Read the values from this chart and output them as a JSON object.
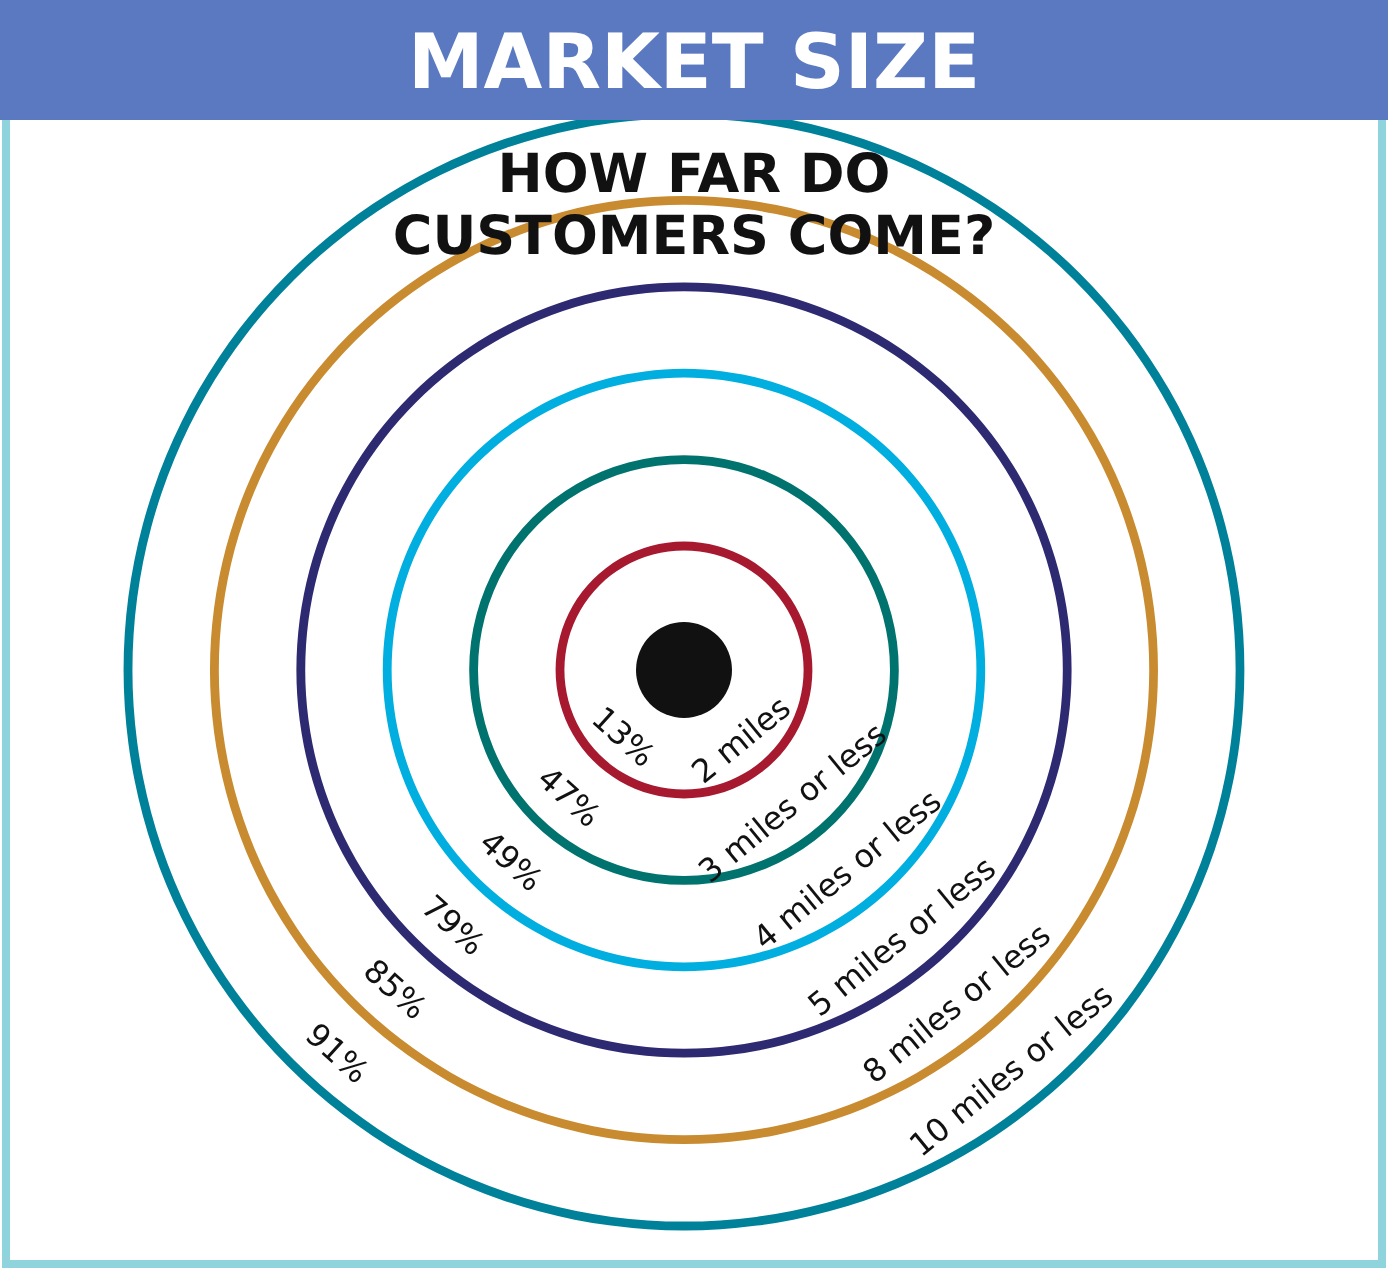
{
  "chart_data": {
    "type": "other",
    "title": "MARKET SIZE",
    "subtitle": "HOW FAR DO\nCUSTOMERS COME?",
    "categories": [
      "2 miles",
      "3 miles or less",
      "4 miles or less",
      "5 miles or less",
      "8 miles or less",
      "10 miles or less"
    ],
    "values": [
      13,
      47,
      49,
      79,
      85,
      91
    ],
    "value_labels": [
      "13%",
      "47%",
      "49%",
      "79%",
      "85%",
      "91%"
    ],
    "colors": [
      "#a6192e",
      "#00736e",
      "#00aee0",
      "#2e2a72",
      "#c98b2f",
      "#00819a"
    ]
  }
}
